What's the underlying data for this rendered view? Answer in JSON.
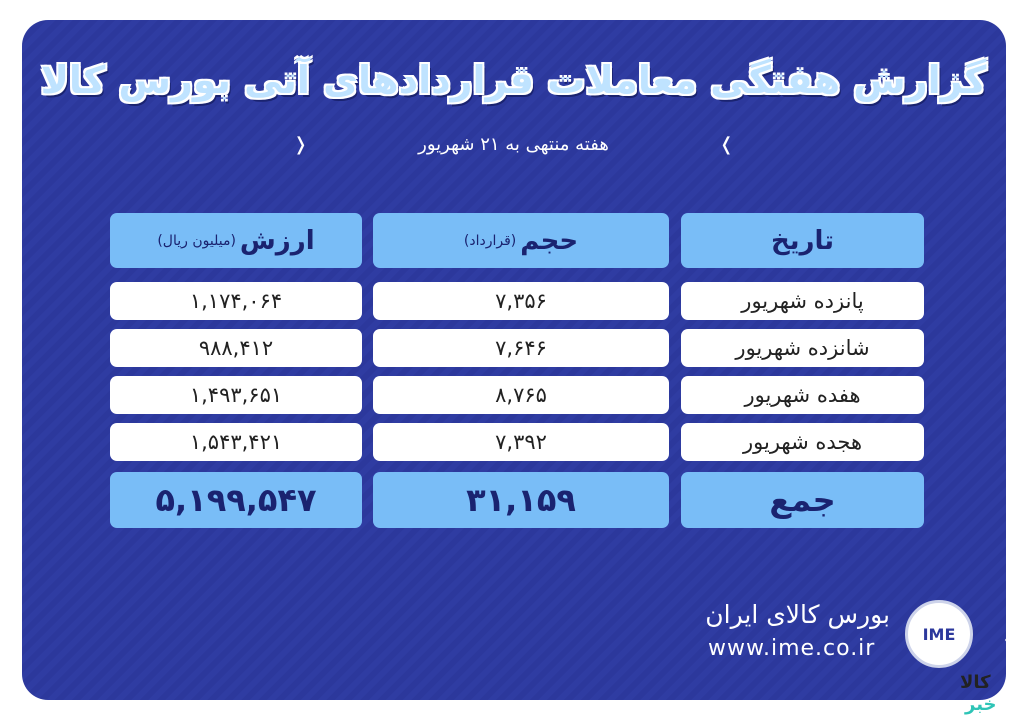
{
  "title": "گزارش هفتگی معاملات قراردادهای آتی بورس کالا",
  "subtitle": "هفته منتهی به ۲۱ شهریور",
  "table": {
    "headers": [
      {
        "label": "تاریخ",
        "unit": ""
      },
      {
        "label": "حجم",
        "unit": "(قرارداد)"
      },
      {
        "label": "ارزش",
        "unit": "(میلیون ریال)"
      }
    ],
    "rows": [
      [
        "پانزده شهریور",
        "۷,۳۵۶",
        "۱,۱۷۴,۰۶۴"
      ],
      [
        "شانزده شهریور",
        "۷,۶۴۶",
        "۹۸۸,۴۱۲"
      ],
      [
        "هفده شهریور",
        "۸,۷۶۵",
        "۱,۴۹۳,۶۵۱"
      ],
      [
        "هجده شهریور",
        "۷,۳۹۲",
        "۱,۵۴۳,۴۲۱"
      ]
    ],
    "total": [
      "جمع",
      "۳۱,۱۵۹",
      "۵,۱۹۹,۵۴۷"
    ]
  },
  "footer": {
    "brand": "بورس کالای ایران",
    "url": "www.ime.co.ir",
    "logo_text": "IME"
  },
  "watermark": {
    "line1": "کالا",
    "line2": "خبر"
  },
  "colors": {
    "background": "#2c389c",
    "header_cell": "#79bdf7",
    "row_cell": "#ffffff"
  }
}
